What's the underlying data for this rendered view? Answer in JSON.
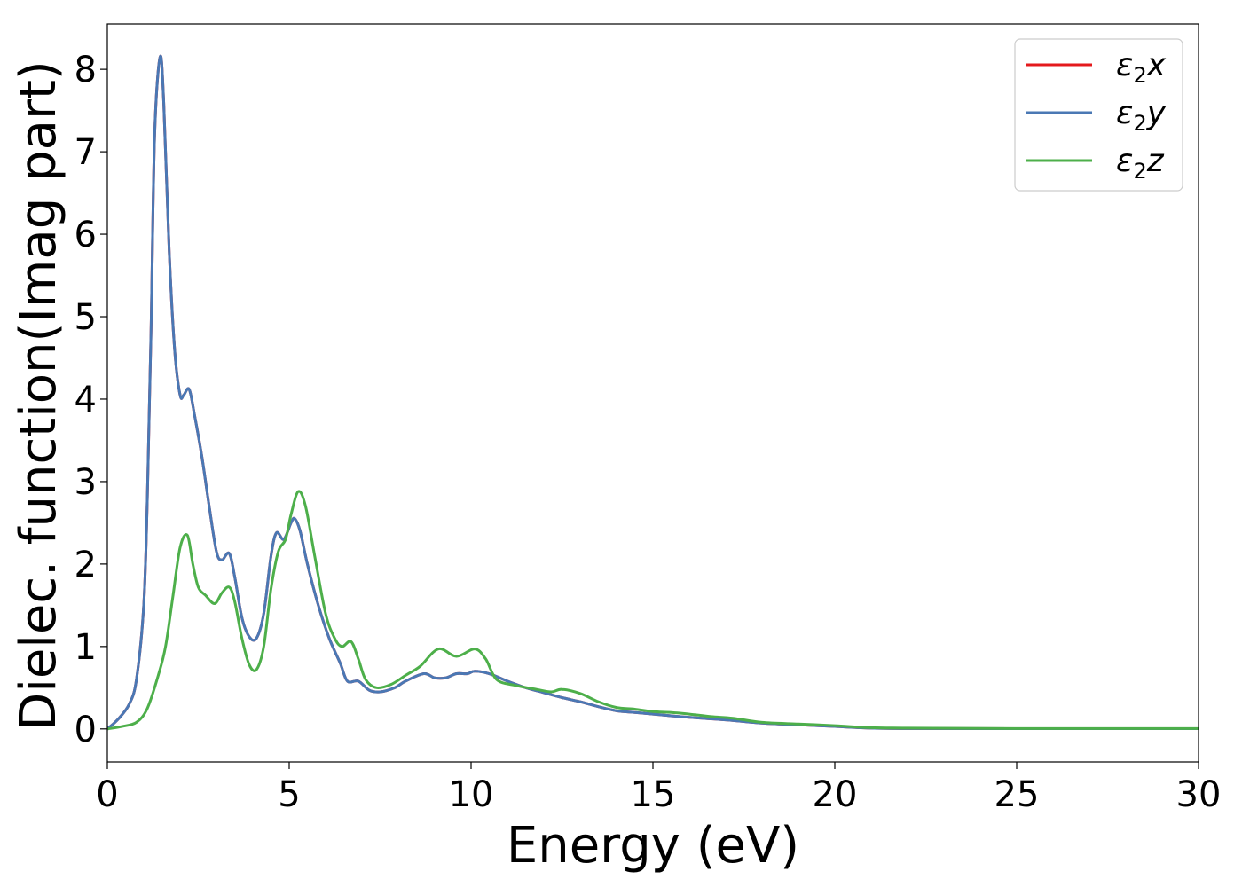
{
  "chart_data": {
    "type": "line",
    "title": "",
    "xlabel": "Energy (eV)",
    "ylabel": "Dielec. function(Imag part)",
    "xlim": [
      0,
      30
    ],
    "ylim": [
      -0.4,
      8.55
    ],
    "xticks": [
      0,
      5,
      10,
      15,
      20,
      25,
      30
    ],
    "yticks": [
      0,
      1,
      2,
      3,
      4,
      5,
      6,
      7,
      8
    ],
    "xtick_labels": [
      "0",
      "5",
      "10",
      "15",
      "20",
      "25",
      "30"
    ],
    "ytick_labels": [
      "0",
      "1",
      "2",
      "3",
      "4",
      "5",
      "6",
      "7",
      "8"
    ],
    "grid": false,
    "legend_position": "top-right",
    "series": [
      {
        "name": "ε2x",
        "legend_main": "ε",
        "legend_sub": "2",
        "legend_suffix": "x",
        "color": "#e41a1c",
        "points": [
          [
            0,
            0
          ],
          [
            0.3,
            0.12
          ],
          [
            0.6,
            0.3
          ],
          [
            0.8,
            0.6
          ],
          [
            1.0,
            1.5
          ],
          [
            1.1,
            2.8
          ],
          [
            1.2,
            4.8
          ],
          [
            1.3,
            7.2
          ],
          [
            1.45,
            8.15
          ],
          [
            1.55,
            7.6
          ],
          [
            1.7,
            5.8
          ],
          [
            1.85,
            4.6
          ],
          [
            2.0,
            4.05
          ],
          [
            2.1,
            4.05
          ],
          [
            2.25,
            4.12
          ],
          [
            2.4,
            3.8
          ],
          [
            2.6,
            3.3
          ],
          [
            2.8,
            2.7
          ],
          [
            3.0,
            2.15
          ],
          [
            3.15,
            2.05
          ],
          [
            3.35,
            2.13
          ],
          [
            3.5,
            1.85
          ],
          [
            3.7,
            1.35
          ],
          [
            3.9,
            1.12
          ],
          [
            4.1,
            1.1
          ],
          [
            4.3,
            1.4
          ],
          [
            4.5,
            2.1
          ],
          [
            4.65,
            2.38
          ],
          [
            4.85,
            2.3
          ],
          [
            5.05,
            2.5
          ],
          [
            5.15,
            2.55
          ],
          [
            5.3,
            2.4
          ],
          [
            5.5,
            2.0
          ],
          [
            5.8,
            1.5
          ],
          [
            6.1,
            1.1
          ],
          [
            6.4,
            0.8
          ],
          [
            6.6,
            0.58
          ],
          [
            6.9,
            0.58
          ],
          [
            7.2,
            0.47
          ],
          [
            7.5,
            0.45
          ],
          [
            7.9,
            0.5
          ],
          [
            8.2,
            0.58
          ],
          [
            8.7,
            0.67
          ],
          [
            9.0,
            0.62
          ],
          [
            9.3,
            0.62
          ],
          [
            9.6,
            0.67
          ],
          [
            9.9,
            0.67
          ],
          [
            10.1,
            0.7
          ],
          [
            10.5,
            0.67
          ],
          [
            11.0,
            0.58
          ],
          [
            11.5,
            0.5
          ],
          [
            12.0,
            0.44
          ],
          [
            12.5,
            0.38
          ],
          [
            13.0,
            0.33
          ],
          [
            13.5,
            0.27
          ],
          [
            14.0,
            0.22
          ],
          [
            14.5,
            0.2
          ],
          [
            15.0,
            0.18
          ],
          [
            16.0,
            0.14
          ],
          [
            17.0,
            0.11
          ],
          [
            18.0,
            0.07
          ],
          [
            19.0,
            0.05
          ],
          [
            20.0,
            0.03
          ],
          [
            21.0,
            0.01
          ],
          [
            22.0,
            0.005
          ],
          [
            25.0,
            0.003
          ],
          [
            30.0,
            0.003
          ]
        ]
      },
      {
        "name": "ε2y",
        "legend_main": "ε",
        "legend_sub": "2",
        "legend_suffix": "y",
        "color": "#4a78b4",
        "points": [
          [
            0,
            0
          ],
          [
            0.3,
            0.12
          ],
          [
            0.6,
            0.3
          ],
          [
            0.8,
            0.6
          ],
          [
            1.0,
            1.5
          ],
          [
            1.1,
            2.8
          ],
          [
            1.2,
            4.8
          ],
          [
            1.3,
            7.2
          ],
          [
            1.45,
            8.15
          ],
          [
            1.55,
            7.6
          ],
          [
            1.7,
            5.8
          ],
          [
            1.85,
            4.6
          ],
          [
            2.0,
            4.05
          ],
          [
            2.1,
            4.05
          ],
          [
            2.25,
            4.12
          ],
          [
            2.4,
            3.8
          ],
          [
            2.6,
            3.3
          ],
          [
            2.8,
            2.7
          ],
          [
            3.0,
            2.15
          ],
          [
            3.15,
            2.05
          ],
          [
            3.35,
            2.13
          ],
          [
            3.5,
            1.85
          ],
          [
            3.7,
            1.35
          ],
          [
            3.9,
            1.12
          ],
          [
            4.1,
            1.1
          ],
          [
            4.3,
            1.4
          ],
          [
            4.5,
            2.1
          ],
          [
            4.65,
            2.38
          ],
          [
            4.85,
            2.3
          ],
          [
            5.05,
            2.5
          ],
          [
            5.15,
            2.55
          ],
          [
            5.3,
            2.4
          ],
          [
            5.5,
            2.0
          ],
          [
            5.8,
            1.5
          ],
          [
            6.1,
            1.1
          ],
          [
            6.4,
            0.8
          ],
          [
            6.6,
            0.58
          ],
          [
            6.9,
            0.58
          ],
          [
            7.2,
            0.47
          ],
          [
            7.5,
            0.45
          ],
          [
            7.9,
            0.5
          ],
          [
            8.2,
            0.58
          ],
          [
            8.7,
            0.67
          ],
          [
            9.0,
            0.62
          ],
          [
            9.3,
            0.62
          ],
          [
            9.6,
            0.67
          ],
          [
            9.9,
            0.67
          ],
          [
            10.1,
            0.7
          ],
          [
            10.5,
            0.67
          ],
          [
            11.0,
            0.58
          ],
          [
            11.5,
            0.5
          ],
          [
            12.0,
            0.44
          ],
          [
            12.5,
            0.38
          ],
          [
            13.0,
            0.33
          ],
          [
            13.5,
            0.27
          ],
          [
            14.0,
            0.22
          ],
          [
            14.5,
            0.2
          ],
          [
            15.0,
            0.18
          ],
          [
            16.0,
            0.14
          ],
          [
            17.0,
            0.11
          ],
          [
            18.0,
            0.07
          ],
          [
            19.0,
            0.05
          ],
          [
            20.0,
            0.03
          ],
          [
            21.0,
            0.01
          ],
          [
            22.0,
            0.005
          ],
          [
            25.0,
            0.003
          ],
          [
            30.0,
            0.003
          ]
        ]
      },
      {
        "name": "ε2z",
        "legend_main": "ε",
        "legend_sub": "2",
        "legend_suffix": "z",
        "color": "#4daf4a",
        "points": [
          [
            0,
            0
          ],
          [
            0.4,
            0.03
          ],
          [
            0.8,
            0.08
          ],
          [
            1.1,
            0.25
          ],
          [
            1.4,
            0.65
          ],
          [
            1.6,
            1.0
          ],
          [
            1.8,
            1.6
          ],
          [
            2.0,
            2.2
          ],
          [
            2.2,
            2.35
          ],
          [
            2.35,
            2.0
          ],
          [
            2.5,
            1.72
          ],
          [
            2.7,
            1.62
          ],
          [
            2.95,
            1.52
          ],
          [
            3.15,
            1.65
          ],
          [
            3.35,
            1.72
          ],
          [
            3.5,
            1.55
          ],
          [
            3.7,
            1.1
          ],
          [
            3.9,
            0.78
          ],
          [
            4.1,
            0.72
          ],
          [
            4.3,
            1.0
          ],
          [
            4.5,
            1.7
          ],
          [
            4.7,
            2.15
          ],
          [
            4.9,
            2.3
          ],
          [
            5.05,
            2.6
          ],
          [
            5.25,
            2.88
          ],
          [
            5.45,
            2.7
          ],
          [
            5.7,
            2.1
          ],
          [
            6.0,
            1.4
          ],
          [
            6.25,
            1.1
          ],
          [
            6.45,
            1.0
          ],
          [
            6.7,
            1.06
          ],
          [
            6.9,
            0.85
          ],
          [
            7.1,
            0.6
          ],
          [
            7.4,
            0.5
          ],
          [
            7.8,
            0.54
          ],
          [
            8.2,
            0.65
          ],
          [
            8.6,
            0.76
          ],
          [
            9.1,
            0.97
          ],
          [
            9.6,
            0.88
          ],
          [
            10.1,
            0.97
          ],
          [
            10.4,
            0.85
          ],
          [
            10.7,
            0.6
          ],
          [
            11.2,
            0.53
          ],
          [
            11.8,
            0.48
          ],
          [
            12.2,
            0.45
          ],
          [
            12.5,
            0.48
          ],
          [
            13.0,
            0.43
          ],
          [
            13.5,
            0.33
          ],
          [
            14.0,
            0.26
          ],
          [
            14.5,
            0.24
          ],
          [
            15.0,
            0.21
          ],
          [
            15.5,
            0.2
          ],
          [
            16.0,
            0.18
          ],
          [
            16.6,
            0.15
          ],
          [
            17.2,
            0.13
          ],
          [
            18.0,
            0.08
          ],
          [
            19.0,
            0.06
          ],
          [
            20.0,
            0.04
          ],
          [
            21.0,
            0.015
          ],
          [
            22.0,
            0.01
          ],
          [
            25.0,
            0.005
          ],
          [
            30.0,
            0.005
          ]
        ]
      }
    ]
  }
}
